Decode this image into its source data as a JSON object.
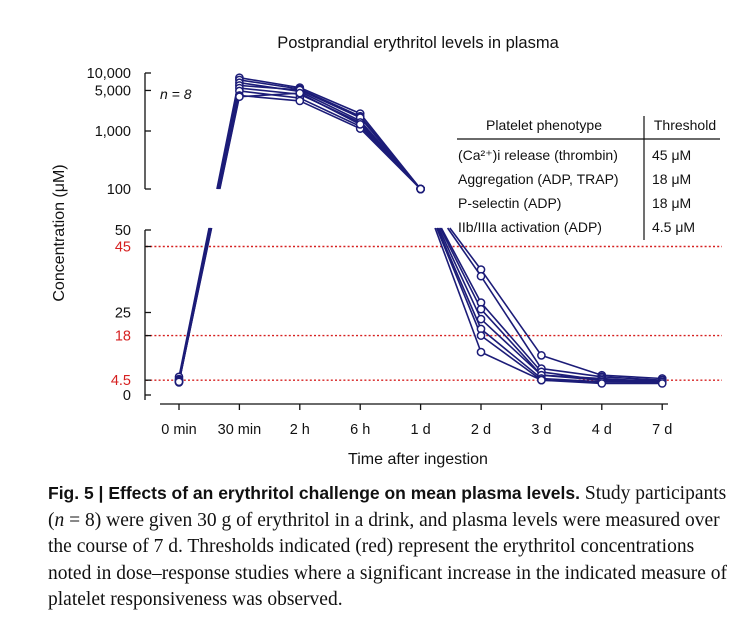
{
  "chart_data": {
    "type": "line",
    "title": "Postprandial erythritol levels in plasma",
    "xlabel": "Time after ingestion",
    "ylabel": "Concentration (μM)",
    "n_label": "n = 8",
    "categories": [
      "0 min",
      "30 min",
      "2 h",
      "6 h",
      "1 d",
      "2 d",
      "3 d",
      "4 d",
      "7 d"
    ],
    "y_axis": {
      "broken": true,
      "lower_range": [
        0,
        50
      ],
      "upper_range": [
        100,
        10000
      ],
      "lower_ticks": [
        {
          "value": 0,
          "label": "0",
          "color": "#111111"
        },
        {
          "value": 4.5,
          "label": "4.5",
          "color": "#d62020"
        },
        {
          "value": 18,
          "label": "18",
          "color": "#d62020"
        },
        {
          "value": 25,
          "label": "25",
          "color": "#111111"
        },
        {
          "value": 45,
          "label": "45",
          "color": "#d62020"
        },
        {
          "value": 50,
          "label": "50",
          "color": "#111111"
        }
      ],
      "upper_ticks": [
        {
          "value": 100,
          "label": "100"
        },
        {
          "value": 1000,
          "label": "1,000"
        },
        {
          "value": 5000,
          "label": "5,000"
        },
        {
          "value": 10000,
          "label": "10,000"
        }
      ]
    },
    "thresholds": [
      4.5,
      18,
      45
    ],
    "series": [
      {
        "values": [
          5.5,
          8300,
          5600,
          2000,
          100,
          38,
          12,
          6.0,
          5.0
        ]
      },
      {
        "values": [
          4.8,
          7600,
          5300,
          1800,
          100,
          36,
          8.0,
          5.5,
          4.5
        ]
      },
      {
        "values": [
          4.5,
          6800,
          4800,
          1500,
          100,
          28,
          7.0,
          4.5,
          4.5
        ]
      },
      {
        "values": [
          4.0,
          6100,
          5100,
          1700,
          100,
          26,
          6.0,
          5.0,
          4.0
        ]
      },
      {
        "values": [
          4.0,
          5500,
          4300,
          1400,
          100,
          23,
          6.0,
          4.5,
          4.0
        ]
      },
      {
        "values": [
          3.8,
          4900,
          3700,
          1200,
          100,
          20,
          5.0,
          4.0,
          3.8
        ]
      },
      {
        "values": [
          4.2,
          4100,
          3300,
          1100,
          100,
          18,
          4.5,
          4.0,
          4.0
        ]
      },
      {
        "values": [
          4.0,
          3900,
          4500,
          1300,
          100,
          13,
          4.5,
          3.5,
          3.5
        ]
      }
    ],
    "colors": {
      "series": "#1c1c78",
      "threshold": "#d62020",
      "axis": "#111111"
    }
  },
  "table": {
    "headers": [
      "Platelet phenotype",
      "Threshold"
    ],
    "rows": [
      [
        "(Ca²⁺)i release (thrombin)",
        "45 μM"
      ],
      [
        "Aggregation (ADP, TRAP)",
        "18 μM"
      ],
      [
        "P-selectin (ADP)",
        "18 μM"
      ],
      [
        "IIb/IIIa activation (ADP)",
        "4.5 μM"
      ]
    ]
  },
  "caption": {
    "lead": "Fig. 5 | Effects of an erythritol challenge on mean plasma levels.",
    "t1": " Study participants (",
    "n": "n",
    "t2": " = 8) were given 30 g of erythritol in a drink, and plasma levels were measured over the course of 7 d. Thresholds indicated (red) represent the erythritol concentrations noted in dose–response studies where a significant increase in the indicated measure of platelet responsiveness was observed."
  }
}
